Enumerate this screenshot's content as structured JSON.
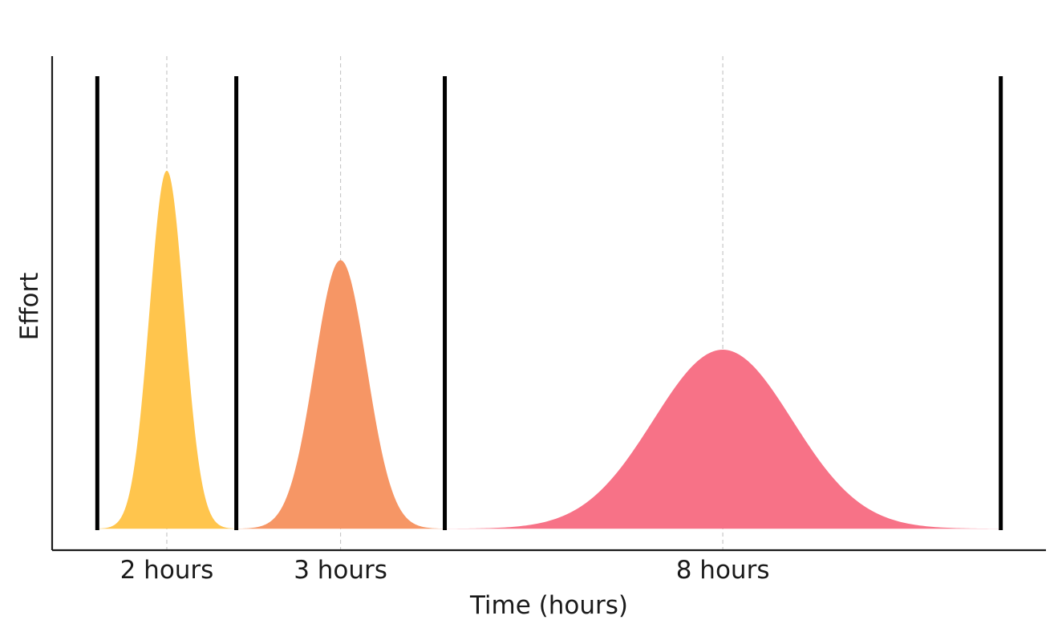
{
  "chart_data": {
    "type": "area",
    "title": "",
    "xlabel": "Time (hours)",
    "ylabel": "Effort",
    "xlim": [
      -1.3,
      27.3
    ],
    "ylim": [
      -0.06,
      1.32
    ],
    "grid": "vertical dashed at distribution peaks",
    "legend": "none",
    "x_tick_labels": [
      "2 hours",
      "3 hours",
      "8 hours"
    ],
    "x_ticks": [
      2,
      7,
      18
    ],
    "boundaries": [
      0,
      4,
      10,
      26
    ],
    "series": [
      {
        "mean": 2,
        "sd": 0.5,
        "peak": 1.0,
        "range": [
          0,
          4
        ],
        "color": "#FFC54D"
      },
      {
        "mean": 7,
        "sd": 0.75,
        "peak": 0.75,
        "range": [
          4,
          10
        ],
        "color": "#F69665"
      },
      {
        "mean": 18,
        "sd": 2.0,
        "peak": 0.5,
        "range": [
          10,
          26
        ],
        "color": "#F77287"
      }
    ]
  }
}
